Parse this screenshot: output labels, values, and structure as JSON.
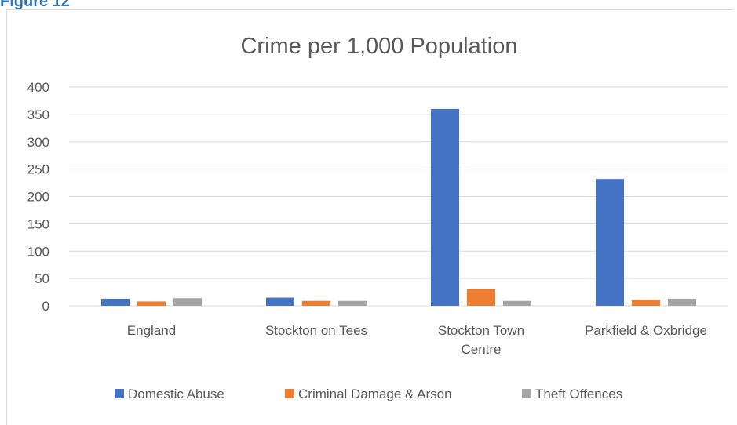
{
  "figure_label": "Figure 12",
  "chart_data": {
    "type": "bar",
    "title": "Crime per 1,000 Population",
    "xlabel": "",
    "ylabel": "",
    "ylim": [
      0,
      400
    ],
    "yticks": [
      0,
      50,
      100,
      150,
      200,
      250,
      300,
      350,
      400
    ],
    "grid": true,
    "legend_position": "bottom",
    "categories": [
      [
        "England"
      ],
      [
        "Stockton on Tees"
      ],
      [
        "Stockton Town",
        "Centre"
      ],
      [
        "Parkfield & Oxbridge"
      ]
    ],
    "series": [
      {
        "name": "Domestic Abuse",
        "color": "#4472c4",
        "values": [
          13,
          15,
          360,
          232
        ]
      },
      {
        "name": "Criminal Damage & Arson",
        "color": "#ed7d31",
        "values": [
          8,
          9,
          31,
          11
        ]
      },
      {
        "name": "Theft Offences",
        "color": "#a5a5a5",
        "values": [
          14,
          9,
          9,
          13
        ]
      }
    ]
  }
}
